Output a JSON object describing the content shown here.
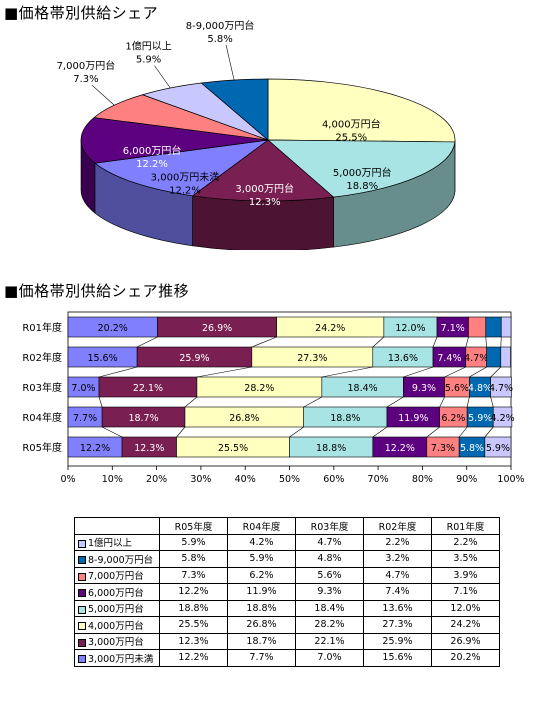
{
  "titles": {
    "pie": "■価格帯別供給シェア",
    "bar": "■価格帯別供給シェア推移"
  },
  "chart_data": [
    {
      "type": "pie",
      "title": "■価格帯別供給シェア",
      "slices": [
        {
          "label": "4,000万円台",
          "value": 25.5,
          "value_label": "25.5%",
          "color": "#ffffc0"
        },
        {
          "label": "5,000万円台",
          "value": 18.8,
          "value_label": "18.8%",
          "color": "#a8e4e4"
        },
        {
          "label": "3,000万円台",
          "value": 12.3,
          "value_label": "12.3%",
          "color": "#7a1f52"
        },
        {
          "label": "3,000万円未満",
          "value": 12.2,
          "value_label": "12.2%",
          "color": "#8080ff"
        },
        {
          "label": "6,000万円台",
          "value": 12.2,
          "value_label": "12.2%",
          "color": "#5c0080"
        },
        {
          "label": "7,000万円台",
          "value": 7.3,
          "value_label": "7.3%",
          "color": "#ff8080"
        },
        {
          "label": "1億円以上",
          "value": 5.9,
          "value_label": "5.9%",
          "color": "#c8c8ff"
        },
        {
          "label": "8-9,000万円台",
          "value": 5.8,
          "value_label": "5.8%",
          "color": "#0068b0"
        }
      ]
    },
    {
      "type": "bar",
      "orientation": "horizontal",
      "stacked": "percent",
      "title": "■価格帯別供給シェア推移",
      "categories": [
        "R01年度",
        "R02年度",
        "R03年度",
        "R04年度",
        "R05年度"
      ],
      "xlim": [
        0,
        100
      ],
      "xticks": [
        "0%",
        "10%",
        "20%",
        "30%",
        "40%",
        "50%",
        "60%",
        "70%",
        "80%",
        "90%",
        "100%"
      ],
      "series": [
        {
          "name": "3,000万円未満",
          "color": "#8080ff",
          "values": [
            20.2,
            15.6,
            7.0,
            7.7,
            12.2
          ]
        },
        {
          "name": "3,000万円台",
          "color": "#7a1f52",
          "values": [
            26.9,
            25.9,
            22.1,
            18.7,
            12.3
          ]
        },
        {
          "name": "4,000万円台",
          "color": "#ffffc0",
          "values": [
            24.2,
            27.3,
            28.2,
            26.8,
            25.5
          ]
        },
        {
          "name": "5,000万円台",
          "color": "#a8e4e4",
          "values": [
            12.0,
            13.6,
            18.4,
            18.8,
            18.8
          ]
        },
        {
          "name": "6,000万円台",
          "color": "#5c0080",
          "values": [
            7.1,
            7.4,
            9.3,
            11.9,
            12.2
          ]
        },
        {
          "name": "7,000万円台",
          "color": "#ff8080",
          "values": [
            3.9,
            4.7,
            5.6,
            6.2,
            7.3
          ]
        },
        {
          "name": "8-9,000万円台",
          "color": "#0068b0",
          "values": [
            3.5,
            3.2,
            4.8,
            5.9,
            5.8
          ]
        },
        {
          "name": "1億円以上",
          "color": "#c8c8ff",
          "values": [
            2.2,
            2.2,
            4.7,
            4.2,
            5.9
          ]
        }
      ],
      "data_labels": [
        [
          "20.2%",
          "26.9%",
          "24.2%",
          "12.0%",
          "7.1%",
          "",
          "",
          ""
        ],
        [
          "15.6%",
          "25.9%",
          "27.3%",
          "13.6%",
          "7.4%",
          "4.7%",
          "",
          ""
        ],
        [
          "7.0%",
          "22.1%",
          "28.2%",
          "18.4%",
          "9.3%",
          "5.6%",
          "4.8%",
          "4.7%"
        ],
        [
          "7.7%",
          "18.7%",
          "26.8%",
          "18.8%",
          "11.9%",
          "6.2%",
          "5.9%",
          "4.2%"
        ],
        [
          "12.2%",
          "12.3%",
          "25.5%",
          "18.8%",
          "12.2%",
          "7.3%",
          "5.8%",
          "5.9%"
        ]
      ]
    },
    {
      "type": "table",
      "columns": [
        "R05年度",
        "R04年度",
        "R03年度",
        "R02年度",
        "R01年度"
      ],
      "rows": [
        {
          "label": "1億円以上",
          "color": "#c8c8ff",
          "values": [
            "5.9%",
            "4.2%",
            "4.7%",
            "2.2%",
            "2.2%"
          ]
        },
        {
          "label": "8-9,000万円台",
          "color": "#0068b0",
          "values": [
            "5.8%",
            "5.9%",
            "4.8%",
            "3.2%",
            "3.5%"
          ]
        },
        {
          "label": "7,000万円台",
          "color": "#ff8080",
          "values": [
            "7.3%",
            "6.2%",
            "5.6%",
            "4.7%",
            "3.9%"
          ]
        },
        {
          "label": "6,000万円台",
          "color": "#5c0080",
          "values": [
            "12.2%",
            "11.9%",
            "9.3%",
            "7.4%",
            "7.1%"
          ]
        },
        {
          "label": "5,000万円台",
          "color": "#a8e4e4",
          "values": [
            "18.8%",
            "18.8%",
            "18.4%",
            "13.6%",
            "12.0%"
          ]
        },
        {
          "label": "4,000万円台",
          "color": "#ffffc0",
          "values": [
            "25.5%",
            "26.8%",
            "28.2%",
            "27.3%",
            "24.2%"
          ]
        },
        {
          "label": "3,000万円台",
          "color": "#7a1f52",
          "values": [
            "12.3%",
            "18.7%",
            "22.1%",
            "25.9%",
            "26.9%"
          ]
        },
        {
          "label": "3,000万円未満",
          "color": "#8080ff",
          "values": [
            "12.2%",
            "7.7%",
            "7.0%",
            "15.6%",
            "20.2%"
          ]
        }
      ]
    }
  ]
}
